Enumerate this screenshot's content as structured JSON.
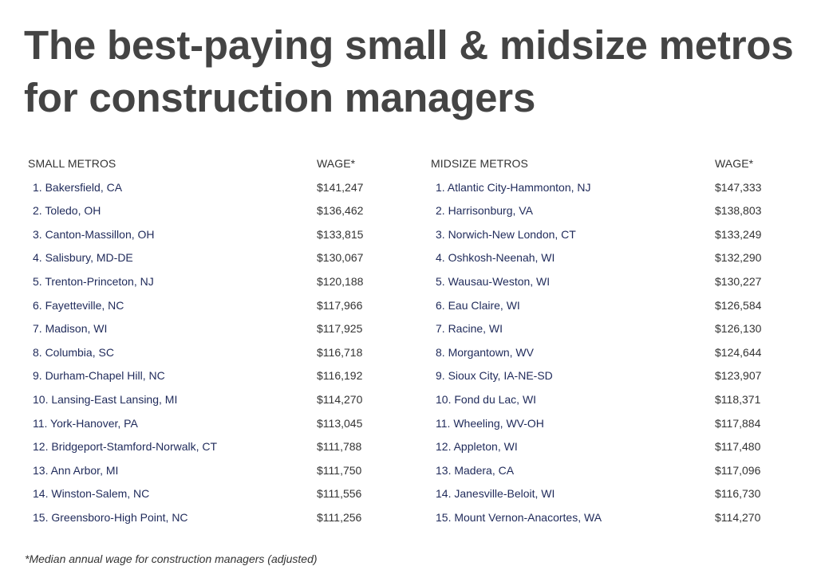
{
  "title": "The best-paying small & midsize metros for construction managers",
  "small": {
    "header_metro": "SMALL METROS",
    "header_wage": "WAGE*",
    "rows": [
      {
        "name": "1. Bakersfield, CA",
        "wage": "$141,247"
      },
      {
        "name": "2. Toledo, OH",
        "wage": "$136,462"
      },
      {
        "name": "3. Canton-Massillon, OH",
        "wage": "$133,815"
      },
      {
        "name": "4. Salisbury, MD-DE",
        "wage": "$130,067"
      },
      {
        "name": "5. Trenton-Princeton, NJ",
        "wage": "$120,188"
      },
      {
        "name": "6. Fayetteville, NC",
        "wage": "$117,966"
      },
      {
        "name": "7. Madison, WI",
        "wage": "$117,925"
      },
      {
        "name": "8. Columbia, SC",
        "wage": "$116,718"
      },
      {
        "name": "9. Durham-Chapel Hill, NC",
        "wage": "$116,192"
      },
      {
        "name": "10. Lansing-East Lansing, MI",
        "wage": "$114,270"
      },
      {
        "name": "11. York-Hanover, PA",
        "wage": "$113,045"
      },
      {
        "name": "12. Bridgeport-Stamford-Norwalk, CT",
        "wage": "$111,788"
      },
      {
        "name": "13. Ann Arbor, MI",
        "wage": "$111,750"
      },
      {
        "name": "14. Winston-Salem, NC",
        "wage": "$111,556"
      },
      {
        "name": "15. Greensboro-High Point, NC",
        "wage": "$111,256"
      }
    ]
  },
  "midsize": {
    "header_metro": "MIDSIZE METROS",
    "header_wage": "WAGE*",
    "rows": [
      {
        "name": "1. Atlantic City-Hammonton, NJ",
        "wage": "$147,333"
      },
      {
        "name": "2. Harrisonburg, VA",
        "wage": "$138,803"
      },
      {
        "name": "3. Norwich-New London, CT",
        "wage": "$133,249"
      },
      {
        "name": "4. Oshkosh-Neenah, WI",
        "wage": "$132,290"
      },
      {
        "name": "5. Wausau-Weston, WI",
        "wage": "$130,227"
      },
      {
        "name": "6. Eau Claire, WI",
        "wage": "$126,584"
      },
      {
        "name": "7. Racine, WI",
        "wage": "$126,130"
      },
      {
        "name": "8. Morgantown, WV",
        "wage": "$124,644"
      },
      {
        "name": "9. Sioux City, IA-NE-SD",
        "wage": "$123,907"
      },
      {
        "name": "10. Fond du Lac, WI",
        "wage": "$118,371"
      },
      {
        "name": "11. Wheeling, WV-OH",
        "wage": "$117,884"
      },
      {
        "name": "12. Appleton, WI",
        "wage": "$117,480"
      },
      {
        "name": "13. Madera, CA",
        "wage": "$117,096"
      },
      {
        "name": "14. Janesville-Beloit, WI",
        "wage": "$116,730"
      },
      {
        "name": "15. Mount Vernon-Anacortes, WA",
        "wage": "$114,270"
      }
    ]
  },
  "footnote": "*Median annual wage for construction managers (adjusted)",
  "colors": {
    "title": "#444444",
    "metro_name": "#1f2a5a",
    "text": "#333333"
  }
}
